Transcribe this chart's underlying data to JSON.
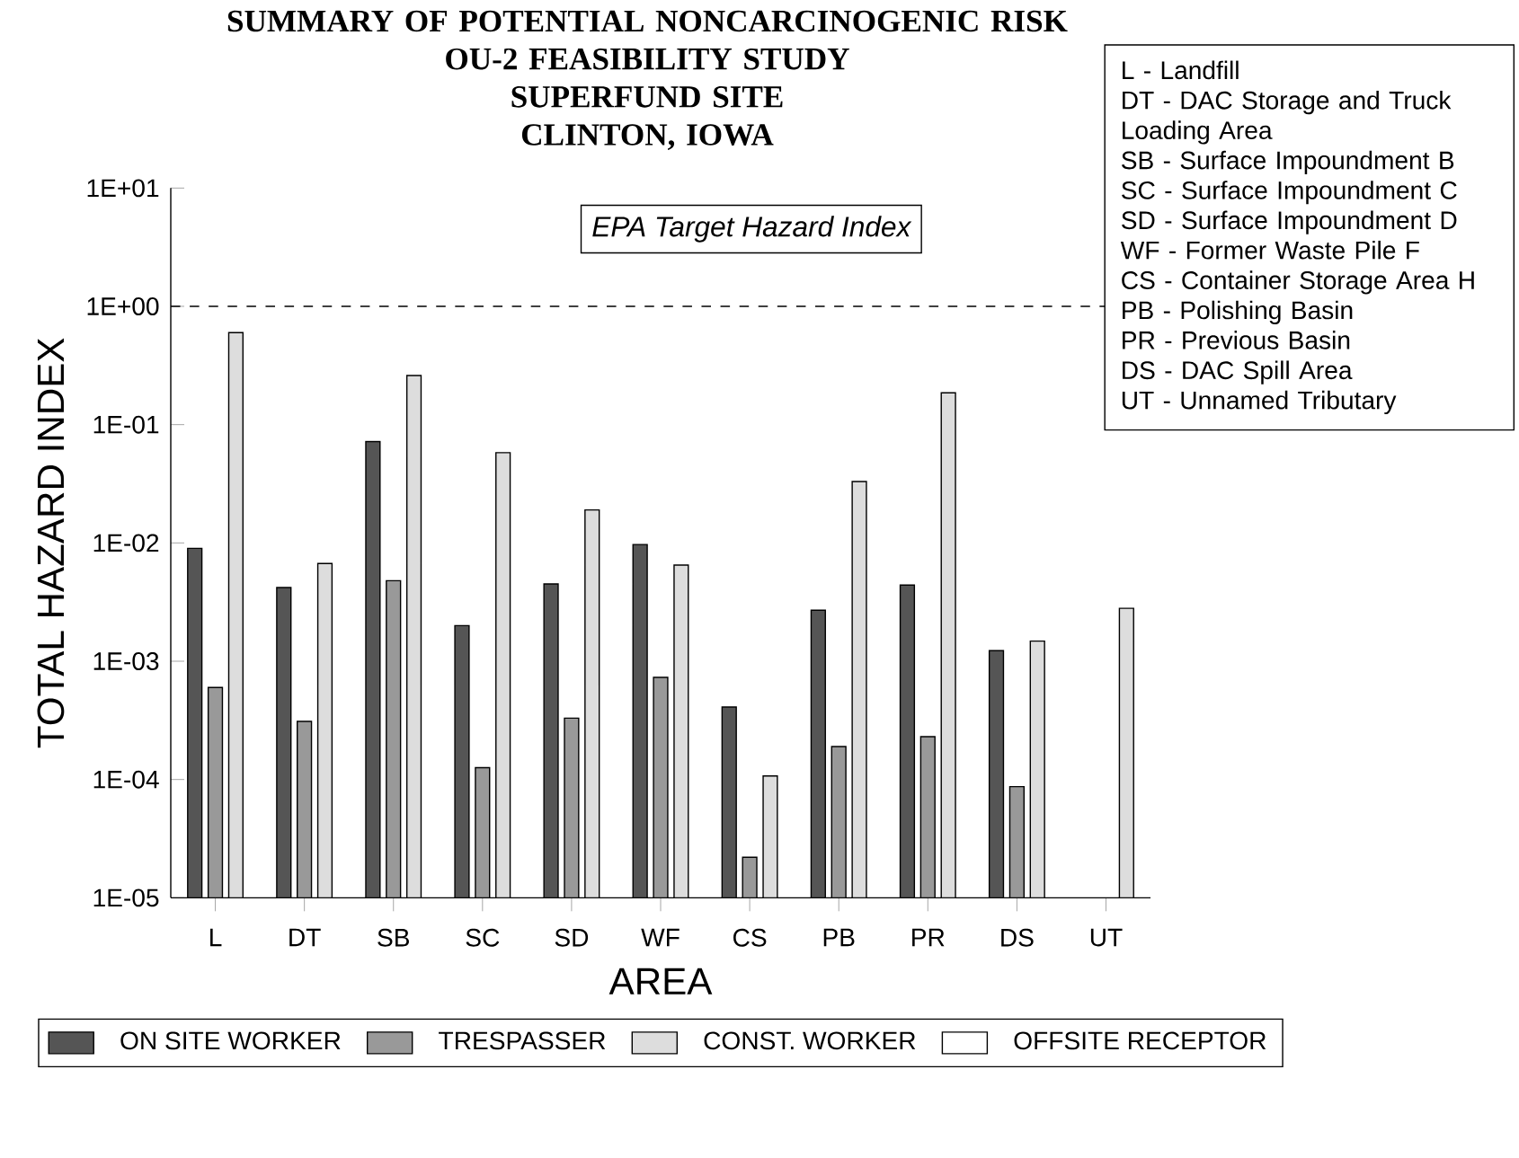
{
  "chart_data": {
    "type": "bar",
    "title": "SUMMARY OF POTENTIAL NONCARCINOGENIC RISK\nOU-2 FEASIBILITY STUDY\nSUPERFUND SITE\nCLINTON, IOWA",
    "xlabel": "AREA",
    "ylabel": "TOTAL HAZARD INDEX",
    "categories": [
      "L",
      "DT",
      "SB",
      "SC",
      "SD",
      "WF",
      "CS",
      "PB",
      "PR",
      "DS",
      "UT"
    ],
    "series": [
      {
        "name": "ON SITE WORKER",
        "color": "#555555",
        "values": [
          0.009,
          0.0042,
          0.072,
          0.002,
          0.0045,
          0.0097,
          0.00041,
          0.0027,
          0.0044,
          0.00123,
          null
        ]
      },
      {
        "name": "TRESPASSER",
        "color": "#999999",
        "values": [
          0.0006,
          0.00031,
          0.0048,
          0.000126,
          0.00033,
          0.00073,
          2.2e-05,
          0.00019,
          0.00023,
          8.7e-05,
          null
        ]
      },
      {
        "name": "CONST. WORKER",
        "color": "#dddddd",
        "values": [
          0.6,
          0.0067,
          0.26,
          0.058,
          0.019,
          0.0065,
          0.000107,
          0.033,
          0.186,
          0.00148,
          0.0028
        ]
      },
      {
        "name": "OFFSITE RECEPTOR",
        "color": "#ffffff",
        "values": [
          null,
          null,
          null,
          null,
          null,
          null,
          null,
          null,
          null,
          null,
          null
        ]
      }
    ],
    "log": "y",
    "ylim": [
      1e-05,
      10
    ],
    "yticks": [
      {
        "value": 10,
        "label": "1E+01"
      },
      {
        "value": 1,
        "label": "1E+00"
      },
      {
        "value": 0.1,
        "label": "1E-01"
      },
      {
        "value": 0.01,
        "label": "1E-02"
      },
      {
        "value": 0.001,
        "label": "1E-03"
      },
      {
        "value": 0.0001,
        "label": "1E-04"
      },
      {
        "value": 1e-05,
        "label": "1E-05"
      }
    ],
    "ref_lines": [
      {
        "axis": "y",
        "value": 1,
        "label": "EPA Target Hazard Index",
        "color": "#000000",
        "line_style": "dashed"
      }
    ],
    "annotations": [
      "L - Landfill",
      "DT - DAC Storage and Truck Loading Area",
      "SB - Surface Impoundment B",
      "SC - Surface Impoundment C",
      "SD - Surface Impoundment D",
      "WF - Former Waste Pile F",
      "CS - Container Storage Area H",
      "PB - Polishing Basin",
      "PR - Previous Basin",
      "DS - DAC Spill Area",
      "UT - Unnamed Tributary"
    ],
    "legend": "bottom",
    "grid": false
  }
}
